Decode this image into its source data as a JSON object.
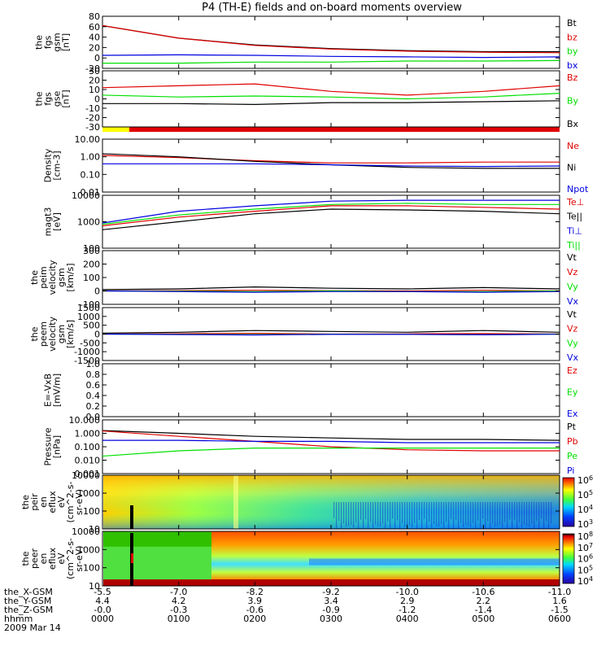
{
  "title": "P4 (TH-E) fields and on-board moments overview",
  "colors": {
    "black": "#000000",
    "red": "#e00000",
    "green": "#00e000",
    "blue": "#0000e0",
    "yellow": "#ffff00"
  },
  "time_ticks": [
    "0000",
    "0100",
    "0200",
    "0300",
    "0400",
    "0500",
    "0600"
  ],
  "footer": {
    "row_labels": [
      "the_X-GSM",
      "the_Y-GSM",
      "the_Z-GSM",
      "hhmm",
      "2009 Mar 14"
    ],
    "x_gsm": [
      "-5.5",
      "-7.0",
      "-8.2",
      "-9.2",
      "-10.0",
      "-10.6",
      "-11.0"
    ],
    "y_gsm": [
      "4.4",
      "4.2",
      "3.9",
      "3.4",
      "2.9",
      "2.2",
      "1.6"
    ],
    "z_gsm": [
      "-0.0",
      "-0.3",
      "-0.6",
      "-0.9",
      "-1.2",
      "-1.4",
      "-1.5"
    ]
  },
  "chart_data": [
    {
      "type": "line",
      "id": "fgs_gsm_mag",
      "ylabel": [
        "the",
        "fgs",
        "gsm",
        "[nT]"
      ],
      "yticks": [
        "80",
        "60",
        "40",
        "20",
        "0",
        "-20"
      ],
      "ylim": [
        -20,
        80
      ],
      "scale": "linear",
      "legend": [
        "Bt",
        "bz",
        "by",
        "bx"
      ],
      "x": [
        "0000",
        "0100",
        "0200",
        "0300",
        "0400",
        "0500",
        "0600"
      ],
      "series": [
        {
          "name": "Bt",
          "color": "black",
          "values": [
            62,
            38,
            25,
            18,
            14,
            12,
            12
          ]
        },
        {
          "name": "bz",
          "color": "red",
          "values": [
            62,
            38,
            24,
            17,
            13,
            11,
            10
          ]
        },
        {
          "name": "by",
          "color": "green",
          "values": [
            -10,
            -10,
            -8,
            -8,
            -6,
            -6,
            -5
          ]
        },
        {
          "name": "bx",
          "color": "blue",
          "values": [
            5,
            6,
            5,
            3,
            2,
            1,
            2
          ]
        }
      ]
    },
    {
      "type": "line",
      "id": "fgs_gse_mag",
      "ylabel": [
        "the",
        "fgs",
        "gse",
        "[nT]"
      ],
      "yticks": [
        "30",
        "20",
        "10",
        "0",
        "-10",
        "-20",
        "-30"
      ],
      "ylim": [
        -30,
        30
      ],
      "scale": "linear",
      "legend": [
        "Bz",
        "By",
        "Bx"
      ],
      "x": [
        "0000",
        "0100",
        "0200",
        "0300",
        "0400",
        "0500",
        "0600"
      ],
      "series": [
        {
          "name": "Bz",
          "color": "red",
          "values": [
            12,
            14,
            16,
            8,
            4,
            8,
            14
          ]
        },
        {
          "name": "By",
          "color": "green",
          "values": [
            4,
            2,
            3,
            2,
            0,
            2,
            6
          ]
        },
        {
          "name": "Bx",
          "color": "black",
          "values": [
            -5,
            -5,
            -6,
            -4,
            -4,
            -3,
            -2
          ]
        }
      ]
    },
    {
      "type": "line",
      "id": "density",
      "ylabel": [
        "Density",
        "[cm-3]"
      ],
      "yticks": [
        "10.00",
        "1.00",
        "0.10",
        "0.01"
      ],
      "ylim": [
        0.01,
        10
      ],
      "scale": "log",
      "legend": [
        "Ne",
        "Ni",
        "Npot"
      ],
      "x": [
        "0000",
        "0100",
        "0200",
        "0300",
        "0400",
        "0500",
        "0600"
      ],
      "series": [
        {
          "name": "Ne",
          "color": "red",
          "values": [
            1.2,
            0.9,
            0.6,
            0.45,
            0.45,
            0.5,
            0.5
          ]
        },
        {
          "name": "Ni",
          "color": "black",
          "values": [
            1.5,
            1.0,
            0.55,
            0.35,
            0.25,
            0.22,
            0.22
          ]
        },
        {
          "name": "Npot",
          "color": "blue",
          "values": [
            0.4,
            0.4,
            0.4,
            0.35,
            0.3,
            0.28,
            0.3
          ]
        }
      ]
    },
    {
      "type": "line",
      "id": "temperature",
      "ylabel": [
        "magt3",
        "[eV]"
      ],
      "yticks": [
        "10000",
        "1000",
        "100"
      ],
      "ylim": [
        100,
        10000
      ],
      "scale": "log",
      "legend": [
        "Te⊥",
        "Te||",
        "Ti⊥",
        "Ti||"
      ],
      "x": [
        "0000",
        "0100",
        "0200",
        "0300",
        "0400",
        "0500",
        "0600"
      ],
      "series": [
        {
          "name": "Te⊥",
          "color": "red",
          "values": [
            700,
            1500,
            2500,
            4000,
            4000,
            3500,
            3000
          ]
        },
        {
          "name": "Te||",
          "color": "black",
          "values": [
            500,
            1000,
            2000,
            3000,
            2800,
            2500,
            2000
          ]
        },
        {
          "name": "Ti⊥",
          "color": "blue",
          "values": [
            900,
            2500,
            4000,
            6000,
            6500,
            6500,
            6500
          ]
        },
        {
          "name": "Ti||",
          "color": "green",
          "values": [
            800,
            1800,
            3000,
            4500,
            5000,
            4500,
            4500
          ]
        }
      ]
    },
    {
      "type": "line",
      "id": "peim_velocity",
      "ylabel": [
        "the",
        "peim",
        "velocity",
        "gsm",
        "[km/s]"
      ],
      "yticks": [
        "300",
        "200",
        "100",
        "0",
        "-100"
      ],
      "ylim": [
        -100,
        300
      ],
      "scale": "linear",
      "legend": [
        "Vt",
        "Vz",
        "Vy",
        "Vx"
      ],
      "x": [
        "0000",
        "0100",
        "0200",
        "0300",
        "0400",
        "0500",
        "0600"
      ],
      "series": [
        {
          "name": "Vt",
          "color": "black",
          "values": [
            10,
            15,
            30,
            20,
            15,
            25,
            15
          ]
        },
        {
          "name": "Vz",
          "color": "red",
          "values": [
            0,
            2,
            5,
            2,
            0,
            5,
            0
          ]
        },
        {
          "name": "Vy",
          "color": "green",
          "values": [
            0,
            -2,
            -5,
            0,
            -5,
            -5,
            0
          ]
        },
        {
          "name": "Vx",
          "color": "blue",
          "values": [
            0,
            -5,
            -10,
            -5,
            -5,
            -10,
            -5
          ]
        }
      ]
    },
    {
      "type": "line",
      "id": "peem_velocity",
      "ylabel": [
        "the",
        "peem",
        "velocity",
        "gsm",
        "[km/s]"
      ],
      "yticks": [
        "1500",
        "1000",
        "500",
        "0",
        "-500",
        "-1000",
        "-1500"
      ],
      "ylim": [
        -1500,
        1500
      ],
      "scale": "linear",
      "legend": [
        "Vt",
        "Vz",
        "Vy",
        "Vx"
      ],
      "x": [
        "0000",
        "0100",
        "0200",
        "0300",
        "0400",
        "0500",
        "0600"
      ],
      "series": [
        {
          "name": "Vt",
          "color": "black",
          "values": [
            50,
            100,
            200,
            150,
            100,
            200,
            100
          ]
        },
        {
          "name": "Vz",
          "color": "red",
          "values": [
            0,
            20,
            40,
            0,
            10,
            30,
            0
          ]
        },
        {
          "name": "Vy",
          "color": "green",
          "values": [
            0,
            -20,
            -30,
            -10,
            -20,
            -40,
            0
          ]
        },
        {
          "name": "Vx",
          "color": "blue",
          "values": [
            0,
            -30,
            -50,
            -20,
            -20,
            -40,
            -10
          ]
        }
      ]
    },
    {
      "type": "line",
      "id": "e_vxb",
      "ylabel": [
        "E=-VxB",
        "[mV/m]"
      ],
      "yticks": [
        "1.0",
        "0.8",
        "0.6",
        "0.4",
        "0.2",
        "0.0"
      ],
      "ylim": [
        0,
        1
      ],
      "scale": "linear",
      "legend": [
        "Ez",
        "Ey",
        "Ex"
      ],
      "series": []
    },
    {
      "type": "line",
      "id": "pressure",
      "ylabel": [
        "Pressure",
        "[nPa]"
      ],
      "yticks": [
        "10.000",
        "1.000",
        "0.100",
        "0.010",
        "0.001"
      ],
      "ylim": [
        0.001,
        10
      ],
      "scale": "log",
      "legend": [
        "Pt",
        "Pb",
        "Pe",
        "Pi"
      ],
      "x": [
        "0000",
        "0100",
        "0200",
        "0300",
        "0400",
        "0500",
        "0600"
      ],
      "series": [
        {
          "name": "Pt",
          "color": "black",
          "values": [
            1.6,
            1.0,
            0.6,
            0.45,
            0.35,
            0.35,
            0.3
          ]
        },
        {
          "name": "Pb",
          "color": "red",
          "values": [
            1.5,
            0.6,
            0.25,
            0.1,
            0.06,
            0.05,
            0.05
          ]
        },
        {
          "name": "Pe",
          "color": "green",
          "values": [
            0.02,
            0.05,
            0.08,
            0.08,
            0.08,
            0.08,
            0.08
          ]
        },
        {
          "name": "Pi",
          "color": "blue",
          "values": [
            0.3,
            0.3,
            0.25,
            0.25,
            0.2,
            0.2,
            0.2
          ]
        }
      ]
    },
    {
      "type": "heatmap",
      "id": "peir_spectrogram",
      "ylabel": [
        "the",
        "peir",
        "en",
        "eflux",
        "eV",
        "(cm^2-s-",
        "sr-eV)"
      ],
      "yticks": [
        "10000",
        "1000",
        "100",
        "10"
      ],
      "ylim": [
        10,
        20000
      ],
      "scale": "log",
      "colorbar_ticks": [
        "10^6",
        "10^5",
        "10^4",
        "10^3"
      ]
    },
    {
      "type": "heatmap",
      "id": "peer_spectrogram",
      "ylabel": [
        "the",
        "peer",
        "en",
        "eflux",
        "eV",
        "(cm^2-s-",
        "sr-eV)"
      ],
      "yticks": [
        "10000",
        "1000",
        "100",
        "10"
      ],
      "ylim": [
        10,
        20000
      ],
      "scale": "log",
      "colorbar_ticks": [
        "10^8",
        "10^7",
        "10^6",
        "10^5",
        "10^4"
      ]
    }
  ]
}
